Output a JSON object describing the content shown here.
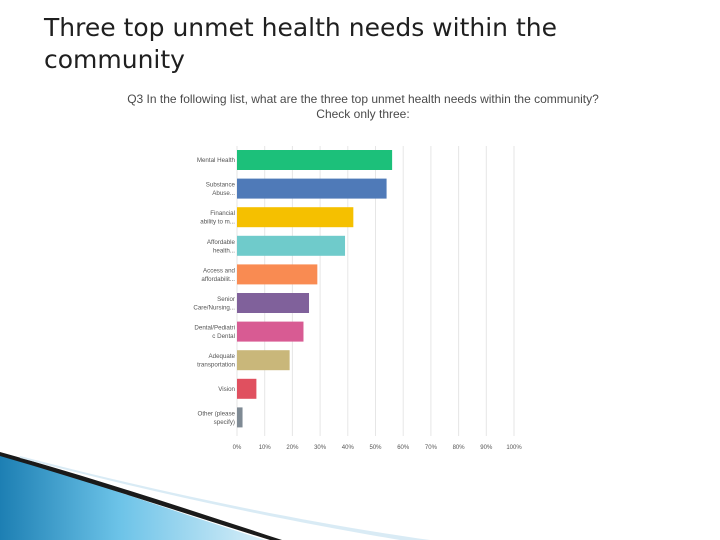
{
  "slide": {
    "title": "Three top unmet health needs within the community"
  },
  "chart_data": {
    "type": "bar",
    "orientation": "horizontal",
    "title_line1": "Q3 In the following list, what are the three top unmet health needs within the community?",
    "title_line2": "Check only three:",
    "categories": [
      [
        "Mental Health"
      ],
      [
        "Substance",
        "Abuse..."
      ],
      [
        "Financial",
        "ability to m..."
      ],
      [
        "Affordable",
        "health..."
      ],
      [
        "Access and",
        "affordabilit..."
      ],
      [
        "Senior",
        "Care/Nursing..."
      ],
      [
        "Dental/Pediatri",
        "c Dental"
      ],
      [
        "Adequate",
        "transportation"
      ],
      [
        "Vision"
      ],
      [
        "Other (please",
        "specify)"
      ]
    ],
    "values": [
      56,
      54,
      42,
      39,
      29,
      26,
      24,
      19,
      7,
      2
    ],
    "colors": [
      "#1cc07a",
      "#4f7ab8",
      "#f5c000",
      "#6fcbcb",
      "#f98b52",
      "#80619b",
      "#d85b93",
      "#c9b77a",
      "#e0505f",
      "#7f8a94"
    ],
    "xlim": [
      0,
      100
    ],
    "xticks": [
      "0%",
      "10%",
      "20%",
      "30%",
      "40%",
      "50%",
      "60%",
      "70%",
      "80%",
      "90%",
      "100%"
    ],
    "grid": true
  }
}
